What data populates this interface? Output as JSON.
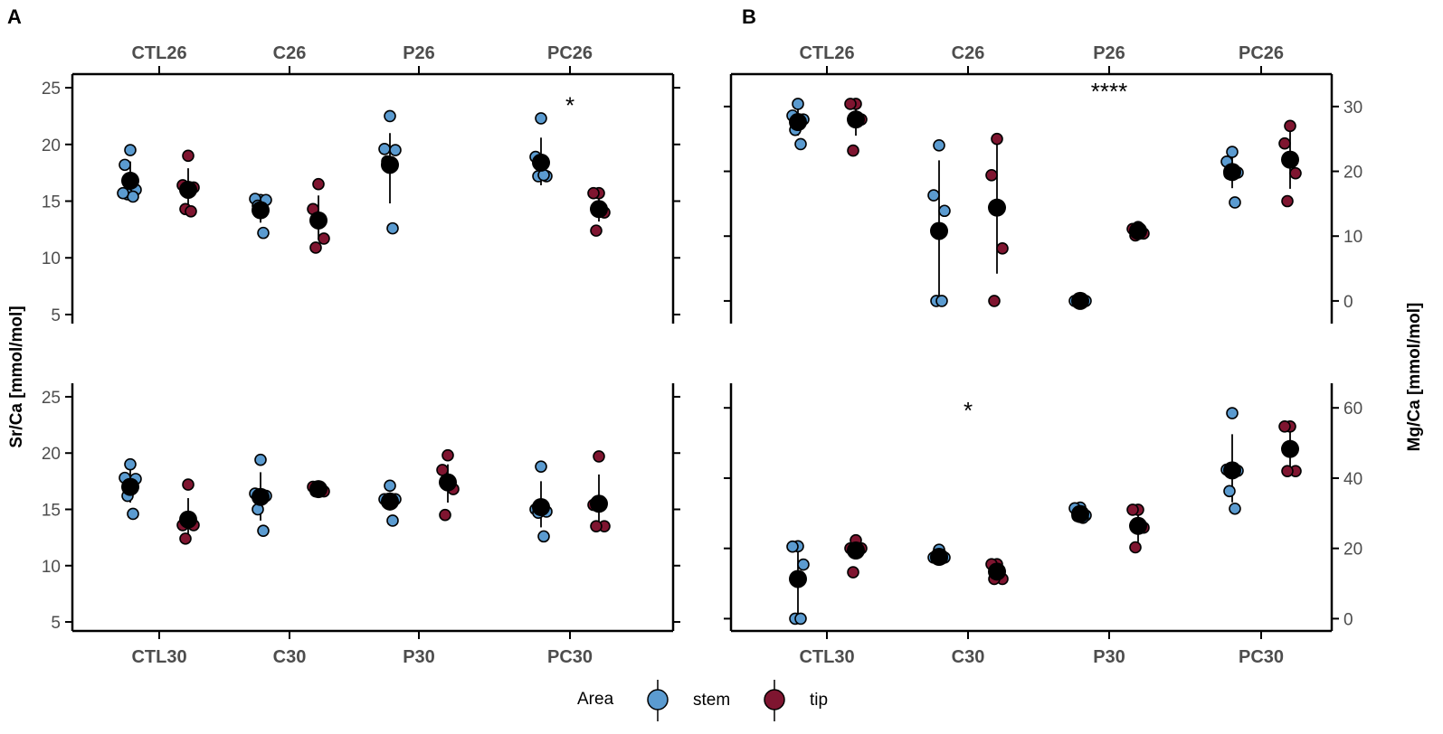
{
  "chart_data": {
    "type": "scatter",
    "legend": {
      "title": "Area",
      "entries": [
        {
          "key": "stem",
          "label": "stem",
          "color": "#5b9bd0"
        },
        {
          "key": "tip",
          "label": "tip",
          "color": "#7f1530"
        }
      ],
      "placement": "bottom"
    },
    "panels": [
      {
        "letter": "A",
        "ylabel": "Sr/Ca [mmol/mol]",
        "ylabel_side": "left",
        "facets": [
          {
            "groups_top": [
              "CTL26",
              "C26",
              "P26",
              "PC26"
            ],
            "ylim": [
              4.2,
              26.2
            ],
            "yticks": [
              5,
              10,
              15,
              20,
              25
            ],
            "annotations": [
              {
                "text": "*",
                "group": 3,
                "y": 23.7
              }
            ],
            "data": [
              {
                "stem": {
                  "points": [
                    19.5,
                    18.2,
                    16,
                    15.6,
                    15.4,
                    15.7
                  ],
                  "mean": 16.8,
                  "sd_low": 15.4,
                  "sd_high": 18.5
                },
                "tip": {
                  "points": [
                    19,
                    16.4,
                    16.2,
                    14.3,
                    14.1
                  ],
                  "mean": 16,
                  "sd_low": 14.7,
                  "sd_high": 17.9
                }
              },
              {
                "stem": {
                  "points": [
                    15.1,
                    15.2,
                    15.1,
                    14.6,
                    12.2
                  ],
                  "mean": 14.2,
                  "sd_low": 13.1,
                  "sd_high": 15.2
                },
                "tip": {
                  "points": [
                    16.5,
                    14.3,
                    11.7,
                    10.9
                  ],
                  "mean": 13.3,
                  "sd_low": 11.6,
                  "sd_high": 15.5
                }
              },
              {
                "stem": {
                  "points": [
                    22.5,
                    19.6,
                    19.5,
                    18.5,
                    12.6
                  ],
                  "mean": 18.2,
                  "sd_low": 14.8,
                  "sd_high": 21
                }
              },
              {
                "stem": {
                  "points": [
                    22.3,
                    18.9,
                    17.2,
                    17.2,
                    17.3
                  ],
                  "mean": 18.4,
                  "sd_low": 16.4,
                  "sd_high": 20.6
                },
                "tip": {
                  "points": [
                    15.7,
                    15.7,
                    14,
                    12.4
                  ],
                  "mean": 14.3,
                  "sd_low": 13.2,
                  "sd_high": 15.3
                }
              }
            ]
          },
          {
            "groups_bottom": [
              "CTL30",
              "C30",
              "P30",
              "PC30"
            ],
            "ylim": [
              4.2,
              26.2
            ],
            "yticks": [
              5,
              10,
              15,
              20,
              25
            ],
            "annotations": [],
            "data": [
              {
                "stem": {
                  "points": [
                    19,
                    17.8,
                    17.7,
                    16.2,
                    14.6
                  ],
                  "mean": 17,
                  "sd_low": 15.6,
                  "sd_high": 18.5
                },
                "tip": {
                  "points": [
                    17.2,
                    13.6,
                    13.6,
                    12.4
                  ],
                  "mean": 14.1,
                  "sd_low": 12.4,
                  "sd_high": 16
                }
              },
              {
                "stem": {
                  "points": [
                    19.4,
                    16.4,
                    16.2,
                    15,
                    13.1
                  ],
                  "mean": 16.1,
                  "sd_low": 14,
                  "sd_high": 18.3
                },
                "tip": {
                  "points": [
                    17,
                    17,
                    16.6,
                    16.6
                  ],
                  "mean": 16.8,
                  "sd_low": 16.5,
                  "sd_high": 17.1
                }
              },
              {
                "stem": {
                  "points": [
                    17.1,
                    15.9,
                    15.9,
                    15.6,
                    14
                  ],
                  "mean": 15.7,
                  "sd_low": 14.9,
                  "sd_high": 16.5
                },
                "tip": {
                  "points": [
                    19.8,
                    18.5,
                    16.8,
                    14.5
                  ],
                  "mean": 17.4,
                  "sd_low": 15.6,
                  "sd_high": 19
                }
              },
              {
                "stem": {
                  "points": [
                    18.8,
                    15,
                    14.8,
                    14.7,
                    12.6
                  ],
                  "mean": 15.2,
                  "sd_low": 13.4,
                  "sd_high": 17.5
                },
                "tip": {
                  "points": [
                    19.7,
                    15.4,
                    13.5,
                    13.5
                  ],
                  "mean": 15.5,
                  "sd_low": 13.3,
                  "sd_high": 18.1
                }
              }
            ]
          }
        ]
      },
      {
        "letter": "B",
        "ylabel": "Mg/Ca [mmol/mol]",
        "ylabel_side": "right",
        "facets": [
          {
            "groups_top": [
              "CTL26",
              "C26",
              "P26",
              "PC26"
            ],
            "ylim": [
              -3.5,
              35
            ],
            "yticks": [
              0,
              10,
              20,
              30
            ],
            "annotations": [
              {
                "text": "****",
                "group": 2,
                "y": 32.8
              }
            ],
            "data": [
              {
                "stem": {
                  "points": [
                    30.4,
                    28.6,
                    28,
                    26.4,
                    24.2
                  ],
                  "mean": 27.6,
                  "sd_low": 25.5,
                  "sd_high": 29.8
                },
                "tip": {
                  "points": [
                    30.4,
                    30.4,
                    28,
                    23.2
                  ],
                  "mean": 28,
                  "sd_low": 25.5,
                  "sd_high": 30.4
                }
              },
              {
                "stem": {
                  "points": [
                    24,
                    16.3,
                    13.9,
                    0,
                    0
                  ],
                  "mean": 10.8,
                  "sd_low": 0,
                  "sd_high": 21.7
                },
                "tip": {
                  "points": [
                    25,
                    19.4,
                    8.1,
                    0
                  ],
                  "mean": 14.4,
                  "sd_low": 4.2,
                  "sd_high": 24.4
                }
              },
              {
                "stem": {
                  "points": [
                    0,
                    0,
                    0,
                    0,
                    0
                  ],
                  "mean": 0,
                  "sd_low": 0,
                  "sd_high": 0
                },
                "tip": {
                  "points": [
                    11.4,
                    11.1,
                    10.4,
                    10.1
                  ],
                  "mean": 10.8,
                  "sd_low": 10.3,
                  "sd_high": 11.3
                }
              },
              {
                "stem": {
                  "points": [
                    23,
                    21.5,
                    19.8,
                    19.6,
                    15.2
                  ],
                  "mean": 19.9,
                  "sd_low": 17.4,
                  "sd_high": 22.4
                },
                "tip": {
                  "points": [
                    27,
                    24.3,
                    19.7,
                    15.4
                  ],
                  "mean": 21.8,
                  "sd_low": 17.3,
                  "sd_high": 26.2
                }
              }
            ]
          },
          {
            "groups_bottom": [
              "CTL30",
              "C30",
              "P30",
              "PC30"
            ],
            "ylim": [
              -3.5,
              67
            ],
            "yticks": [
              0,
              20,
              40,
              60
            ],
            "annotations": [
              {
                "text": "*",
                "group": 1,
                "y": 60
              }
            ],
            "data": [
              {
                "stem": {
                  "points": [
                    20.6,
                    20.5,
                    15.4,
                    0,
                    0
                  ],
                  "mean": 11.3,
                  "sd_low": 0,
                  "sd_high": 20.6
                },
                "tip": {
                  "points": [
                    22.3,
                    20,
                    20,
                    13.2
                  ],
                  "mean": 19.4,
                  "sd_low": 17,
                  "sd_high": 21.8
                }
              },
              {
                "stem": {
                  "points": [
                    19.6,
                    17.4,
                    17.4,
                    17.2,
                    17.1
                  ],
                  "mean": 17.6,
                  "sd_low": 16.9,
                  "sd_high": 18.4
                },
                "tip": {
                  "points": [
                    15.5,
                    15.5,
                    11.3,
                    11.3
                  ],
                  "mean": 13.4,
                  "sd_low": 11.2,
                  "sd_high": 15.7
                }
              },
              {
                "stem": {
                  "points": [
                    31.6,
                    31.4,
                    29.4,
                    29.2,
                    28.7
                  ],
                  "mean": 29.8,
                  "sd_low": 28.5,
                  "sd_high": 31.3
                },
                "tip": {
                  "points": [
                    31,
                    31,
                    25.9,
                    20.3
                  ],
                  "mean": 26.4,
                  "sd_low": 21.8,
                  "sd_high": 31
                }
              },
              {
                "stem": {
                  "points": [
                    58.5,
                    42.4,
                    42.1,
                    36.3,
                    31.3
                  ],
                  "mean": 42.2,
                  "sd_low": 33.1,
                  "sd_high": 52.5
                },
                "tip": {
                  "points": [
                    54.7,
                    54.7,
                    42,
                    42
                  ],
                  "mean": 48.3,
                  "sd_low": 41.7,
                  "sd_high": 54.9
                }
              }
            ]
          }
        ]
      }
    ]
  }
}
